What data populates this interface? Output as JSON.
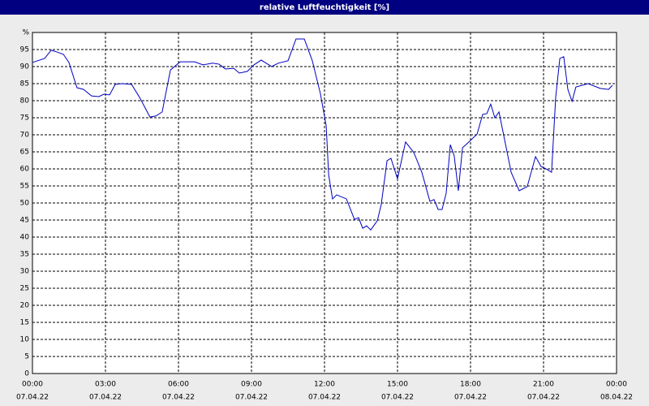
{
  "chart_data": {
    "type": "line",
    "title": "relative Luftfeuchtigkeit [%]",
    "xlim": [
      0,
      24
    ],
    "ylim": [
      0,
      100
    ],
    "xticks": [
      {
        "value": 0,
        "label": "00:00",
        "date": "07.04.22"
      },
      {
        "value": 3,
        "label": "03:00",
        "date": "07.04.22"
      },
      {
        "value": 6,
        "label": "06:00",
        "date": "07.04.22"
      },
      {
        "value": 9,
        "label": "09:00",
        "date": "07.04.22"
      },
      {
        "value": 12,
        "label": "12:00",
        "date": "07.04.22"
      },
      {
        "value": 15,
        "label": "15:00",
        "date": "07.04.22"
      },
      {
        "value": 18,
        "label": "18:00",
        "date": "07.04.22"
      },
      {
        "value": 21,
        "label": "21:00",
        "date": "07.04.22"
      },
      {
        "value": 24,
        "label": "00:00",
        "date": "08.04.22"
      }
    ],
    "yticks": [
      0,
      5,
      10,
      15,
      20,
      25,
      30,
      35,
      40,
      45,
      50,
      55,
      60,
      65,
      70,
      75,
      80,
      85,
      90,
      95,
      {
        "value": 100,
        "label": "%"
      }
    ],
    "grid": true,
    "color": "#0000c0",
    "x": [
      0,
      0.5,
      0.77,
      1,
      1.27,
      1.5,
      1.83,
      2.1,
      2.43,
      2.73,
      2.93,
      3.17,
      3.4,
      3.67,
      4.07,
      4.4,
      4.83,
      5.07,
      5.33,
      5.67,
      6.07,
      6.67,
      7,
      7.4,
      7.67,
      7.93,
      8.27,
      8.5,
      8.83,
      9.1,
      9.4,
      9.83,
      10.1,
      10.5,
      10.83,
      11.17,
      11.5,
      11.83,
      12.07,
      12.17,
      12.33,
      12.5,
      12.9,
      13.23,
      13.4,
      13.57,
      13.73,
      13.9,
      14.17,
      14.33,
      14.57,
      14.73,
      15,
      15.33,
      15.67,
      16,
      16.33,
      16.5,
      16.67,
      16.83,
      17,
      17.17,
      17.33,
      17.5,
      17.67,
      17.93,
      18.27,
      18.5,
      18.67,
      18.83,
      19,
      19.17,
      19.67,
      20,
      20.33,
      20.67,
      20.9,
      21.1,
      21.33,
      21.5,
      21.67,
      21.83,
      22,
      22.17,
      22.33,
      22.83,
      23.33,
      23.67,
      23.83
    ],
    "values": [
      91.2,
      92.4,
      94.8,
      94.3,
      93.6,
      91.2,
      83.8,
      83.3,
      81.4,
      81.2,
      81.9,
      81.7,
      84.8,
      85,
      84.8,
      81,
      75.2,
      75.5,
      76.7,
      89,
      91.4,
      91.4,
      90.5,
      91,
      90.7,
      89.3,
      89.5,
      88.1,
      88.6,
      90.5,
      91.9,
      90,
      91,
      91.7,
      98.1,
      98.1,
      91.7,
      82.1,
      72.6,
      58.3,
      51.2,
      52.4,
      51.2,
      45.2,
      45.7,
      42.6,
      43.3,
      42.1,
      44.8,
      49.5,
      62.4,
      63.1,
      57.1,
      67.9,
      64.8,
      59,
      50.5,
      51,
      48.1,
      48.1,
      52.9,
      67.1,
      63.8,
      53.6,
      66.2,
      67.9,
      70.2,
      76,
      76.2,
      79,
      75,
      76.7,
      59,
      53.6,
      54.8,
      63.6,
      60.7,
      60,
      59,
      81,
      92.4,
      92.9,
      83.3,
      79.8,
      84,
      85,
      83.6,
      83.3,
      84.5
    ]
  }
}
